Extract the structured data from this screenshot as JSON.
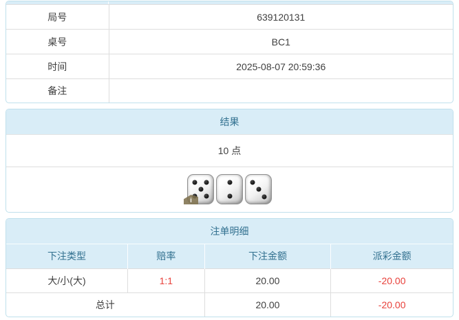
{
  "colors": {
    "header_bg": "#d9edf7",
    "header_text": "#31708f",
    "panel_border": "#bfe0ec",
    "cell_border": "#dddddd",
    "negative_red": "#e8403a"
  },
  "info_table": {
    "rows": [
      {
        "label": "局号",
        "value": "639120131"
      },
      {
        "label": "桌号",
        "value": "BC1"
      },
      {
        "label": "时间",
        "value": "2025-08-07 20:59:36"
      },
      {
        "label": "备注",
        "value": ""
      }
    ]
  },
  "result_panel": {
    "title": "结果",
    "points": "10 点",
    "dice": [
      5,
      2,
      3
    ],
    "badge_label": "i"
  },
  "bets_panel": {
    "title": "注单明细",
    "columns": [
      "下注类型",
      "赔率",
      "下注金额",
      "派彩金额"
    ],
    "rows": [
      {
        "type": "大/小(大)",
        "odds": "1:1",
        "bet": "20.00",
        "payout": "-20.00"
      }
    ],
    "total": {
      "label": "总计",
      "bet": "20.00",
      "payout": "-20.00"
    }
  }
}
